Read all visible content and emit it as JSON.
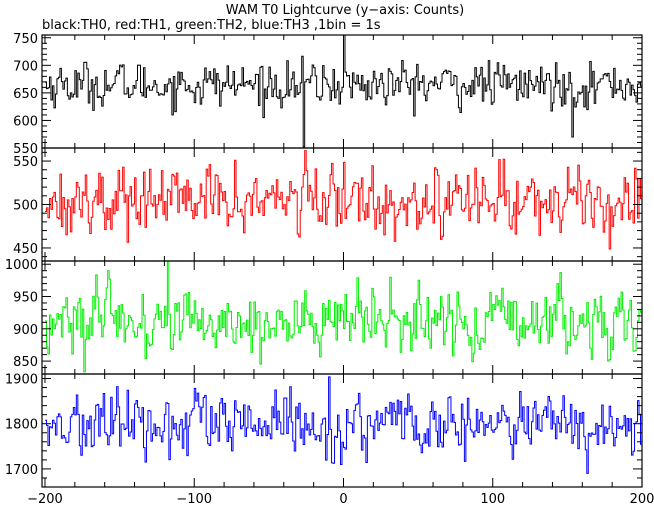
{
  "title": "WAM T0 Lightcurve (y−axis: Counts)",
  "subtitle": "black:TH0, red:TH1, green:TH2, blue:TH3 ,1bin = 1s",
  "chart_data": [
    {
      "type": "line",
      "series": [
        {
          "name": "TH0",
          "color": "#000000",
          "mean": 665,
          "noise": 26,
          "x_range": [
            -200,
            200
          ],
          "bin": 1
        }
      ],
      "ylim": [
        550,
        755
      ],
      "yticks": [
        550,
        600,
        650,
        700,
        750
      ],
      "xlim": [
        -202,
        200
      ],
      "xticks": [
        -200,
        -100,
        0,
        100,
        200
      ],
      "features": [
        {
          "x": 0,
          "y": 755
        },
        {
          "x": -27,
          "y": 552
        },
        {
          "x": 153,
          "y": 570
        }
      ]
    },
    {
      "type": "line",
      "series": [
        {
          "name": "TH1",
          "color": "#ff0000",
          "mean": 505,
          "noise": 25,
          "x_range": [
            -200,
            200
          ],
          "bin": 1
        }
      ],
      "ylim": [
        435,
        565
      ],
      "yticks": [
        450,
        500,
        550
      ],
      "xlim": [
        -202,
        200
      ],
      "xticks": [
        -200,
        -100,
        0,
        100,
        200
      ],
      "features": []
    },
    {
      "type": "line",
      "series": [
        {
          "name": "TH2",
          "color": "#00ee00",
          "mean": 910,
          "noise": 35,
          "x_range": [
            -200,
            200
          ],
          "bin": 1
        }
      ],
      "ylim": [
        830,
        1005
      ],
      "yticks": [
        850,
        900,
        950,
        1000
      ],
      "xlim": [
        -202,
        200
      ],
      "xticks": [
        -200,
        -100,
        0,
        100,
        200
      ],
      "features": []
    },
    {
      "type": "line",
      "series": [
        {
          "name": "TH3",
          "color": "#0000ff",
          "mean": 1795,
          "noise": 45,
          "x_range": [
            -200,
            200
          ],
          "bin": 1
        }
      ],
      "ylim": [
        1660,
        1910
      ],
      "yticks": [
        1700,
        1800,
        1900
      ],
      "xlim": [
        -202,
        200
      ],
      "xticks": [
        -200,
        -100,
        0,
        100,
        200
      ],
      "features": []
    }
  ]
}
